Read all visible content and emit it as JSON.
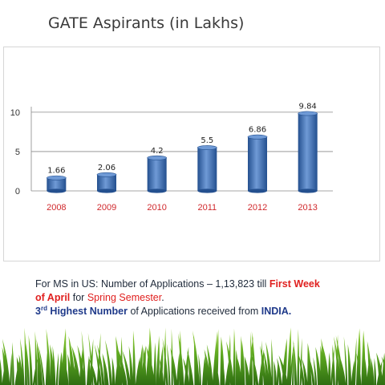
{
  "slide": {
    "title": "GATE Aspirants (in Lakhs)"
  },
  "chart_data": {
    "type": "bar",
    "title": "",
    "xlabel": "",
    "ylabel": "",
    "categories": [
      "2008",
      "2009",
      "2010",
      "2011",
      "2012",
      "2013"
    ],
    "values": [
      1.66,
      2.06,
      4.2,
      5.5,
      6.86,
      9.84
    ],
    "value_labels": [
      "1.66",
      "2.06",
      "4.2",
      "5.5",
      "6.86",
      "9.84"
    ],
    "yticks": [
      "0",
      "5",
      "10"
    ],
    "ytick_values": [
      0,
      5,
      10
    ],
    "ylim": [
      0,
      10.5
    ],
    "grid": true,
    "legend": "none",
    "colors": {
      "bar": "#3a6fb5",
      "bar_dark": "#24508f",
      "bar_light": "#6f9ad6",
      "xtick": "#d0282c"
    }
  },
  "text": {
    "line1_a": "For MS in US:  Number of Applications – 1,13,823  till ",
    "line1_b": "First Week",
    "line2_a": "of April",
    "line2_b": " for ",
    "line2_c": "Spring Semester",
    "line2_d": ".",
    "line3_num": "3",
    "line3_sup": "rd",
    "line3_a": " Highest Number",
    "line3_b": " of Applications received from ",
    "line3_c": "INDIA."
  }
}
